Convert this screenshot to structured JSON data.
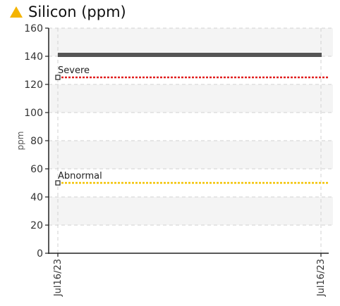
{
  "header": {
    "title": "Silicon (ppm)",
    "status_icon": "warning-triangle-icon",
    "status_color": "#f4b400"
  },
  "chart_data": {
    "type": "line",
    "title": "Silicon (ppm)",
    "ylabel": "ppm",
    "xlabel": "",
    "ylim": [
      0,
      160
    ],
    "yticks": [
      0,
      20,
      40,
      60,
      80,
      100,
      120,
      140,
      160
    ],
    "x_tick_labels": [
      "Jul16/23",
      "Jul16/23"
    ],
    "grid": true,
    "series": [
      {
        "values": [
          141,
          141
        ],
        "color": "#555555"
      }
    ],
    "thresholds": [
      {
        "name": "Severe",
        "value": 125,
        "color": "#e02020"
      },
      {
        "name": "Abnormal",
        "value": 50,
        "color": "#f2c200"
      }
    ]
  }
}
